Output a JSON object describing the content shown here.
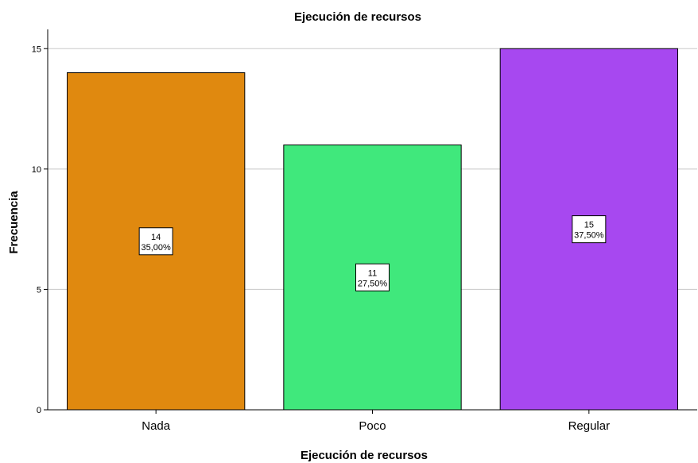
{
  "chart_data": {
    "type": "bar",
    "title": "Ejecución de recursos",
    "xlabel": "Ejecución de recursos",
    "ylabel": "Frecuencia",
    "categories": [
      "Nada",
      "Poco",
      "Regular"
    ],
    "values": [
      14,
      11,
      15
    ],
    "percent_labels": [
      "35,00%",
      "27,50%",
      "37,50%"
    ],
    "colors": [
      "#e0890f",
      "#40e87c",
      "#a748f0"
    ],
    "ylim": [
      0,
      15.8
    ],
    "yticks": [
      "0",
      "5",
      "10",
      "15"
    ],
    "grid": true,
    "legend": "none"
  }
}
